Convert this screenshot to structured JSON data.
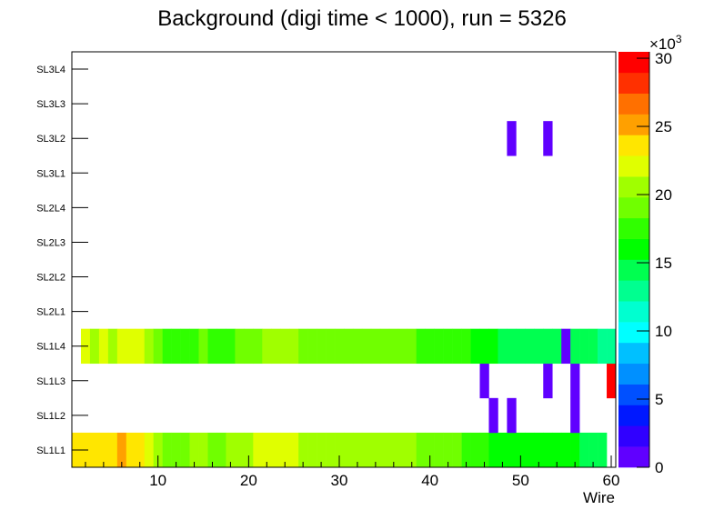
{
  "chart_data": {
    "type": "heatmap",
    "title": "Background (digi time < 1000), run = 5326",
    "xlabel": "Wire",
    "ylabel": "",
    "xlim": [
      0.5,
      60.5
    ],
    "x_ticks": [
      10,
      20,
      30,
      40,
      50,
      60
    ],
    "y_categories": [
      "SL1L1",
      "SL1L2",
      "SL1L3",
      "SL1L4",
      "SL2L1",
      "SL2L2",
      "SL2L3",
      "SL2L4",
      "SL3L1",
      "SL3L2",
      "SL3L3",
      "SL3L4"
    ],
    "z_range": [
      0,
      30470
    ],
    "z_ticks": [
      0,
      5,
      10,
      15,
      20,
      25,
      30
    ],
    "z_multiplier_label": "×10",
    "z_multiplier_exp": "3",
    "palette": [
      "#6000ff",
      "#3000ff",
      "#0018ff",
      "#0050ff",
      "#0090ff",
      "#00c0ff",
      "#00ffff",
      "#00ffd0",
      "#00ff90",
      "#00ff50",
      "#00ff00",
      "#30ff00",
      "#70ff00",
      "#a0ff00",
      "#e0ff00",
      "#ffe600",
      "#ffa000",
      "#ff7000",
      "#ff3000",
      "#ff0000"
    ],
    "rows": {
      "SL1L1": [
        [
          1,
          5,
          23500
        ],
        [
          6,
          6,
          25000
        ],
        [
          7,
          8,
          23500
        ],
        [
          9,
          9,
          22000
        ],
        [
          10,
          10,
          20500
        ],
        [
          11,
          13,
          19000
        ],
        [
          14,
          15,
          20500
        ],
        [
          16,
          17,
          19000
        ],
        [
          18,
          20,
          20500
        ],
        [
          21,
          25,
          22000
        ],
        [
          26,
          38,
          20500
        ],
        [
          39,
          43,
          19000
        ],
        [
          44,
          46,
          17500
        ],
        [
          47,
          56,
          16000
        ],
        [
          57,
          59,
          14500
        ]
      ],
      "SL1L2": [
        [
          47,
          47,
          1
        ],
        [
          49,
          49,
          1
        ],
        [
          56,
          56,
          1
        ]
      ],
      "SL1L3": [
        [
          46,
          46,
          1
        ],
        [
          53,
          53,
          1
        ],
        [
          56,
          56,
          1
        ],
        [
          60,
          60,
          30000
        ]
      ],
      "SL1L4": [
        [
          2,
          2,
          22000
        ],
        [
          3,
          3,
          20500
        ],
        [
          4,
          4,
          22000
        ],
        [
          5,
          5,
          20500
        ],
        [
          6,
          8,
          22000
        ],
        [
          9,
          9,
          20500
        ],
        [
          10,
          10,
          19000
        ],
        [
          11,
          14,
          17500
        ],
        [
          15,
          15,
          19000
        ],
        [
          16,
          18,
          17500
        ],
        [
          19,
          21,
          19000
        ],
        [
          22,
          25,
          20500
        ],
        [
          26,
          38,
          19000
        ],
        [
          39,
          44,
          17500
        ],
        [
          45,
          47,
          16000
        ],
        [
          48,
          54,
          14500
        ],
        [
          55,
          55,
          1
        ],
        [
          56,
          58,
          14500
        ],
        [
          59,
          60,
          13000
        ]
      ],
      "SL2L1": [],
      "SL2L2": [],
      "SL2L3": [],
      "SL2L4": [],
      "SL3L1": [],
      "SL3L2": [
        [
          49,
          49,
          1
        ],
        [
          53,
          53,
          1
        ]
      ],
      "SL3L3": [],
      "SL3L4": []
    }
  }
}
